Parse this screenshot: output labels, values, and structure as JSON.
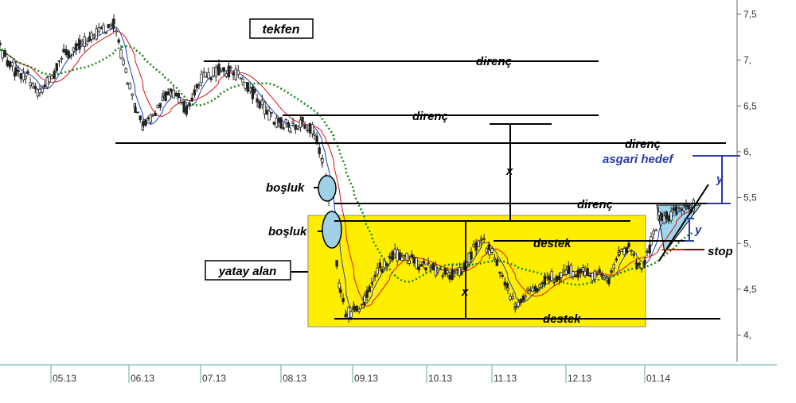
{
  "chart_data": {
    "type": "candlestick",
    "title": "tekfen",
    "y_ticks": [
      "7,5",
      "7,",
      "6,5",
      "6,",
      "5,5",
      "5,",
      "4,5",
      "4,"
    ],
    "y_tick_values": [
      7.5,
      7.0,
      6.5,
      6.0,
      5.5,
      5.0,
      4.5,
      4.0
    ],
    "ylim": [
      3.7,
      7.6
    ],
    "x_ticks": [
      "05.13",
      "06.13",
      "07.13",
      "08.13",
      "09.13",
      "10.13",
      "11.13",
      "12.13",
      "01.14"
    ],
    "grid": false,
    "colors": {
      "ma_short": "#1f3fbf",
      "ma_mid": "#dd1111",
      "ma_long": "#118811",
      "zone_fill": "#ffee00",
      "triangle_fill": "#9fd6ea",
      "gap_fill": "#9fd0e6",
      "target_color": "#2a3aa8"
    },
    "candles": [],
    "annotations": {
      "resistance": "direnç",
      "support": "destek",
      "gap": "boşluk",
      "range": "yatay alan",
      "x": "x",
      "y": "y",
      "min_target": "asgari hedef",
      "stop": "stop"
    }
  }
}
